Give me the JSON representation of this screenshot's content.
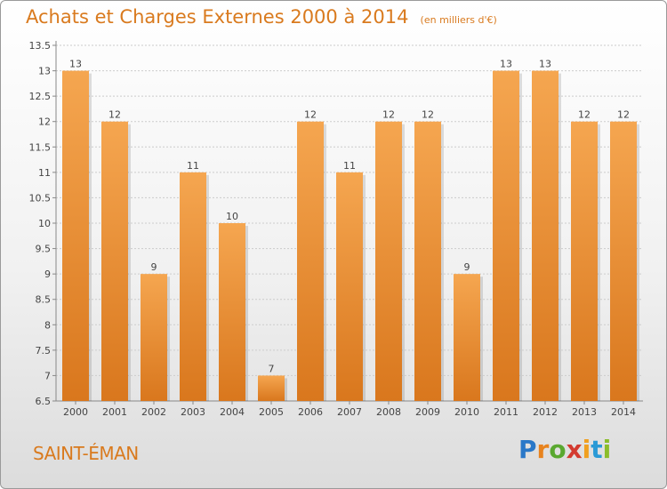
{
  "title": "Achats et Charges Externes 2000 à 2014",
  "subtitle": "(en milliers d'€)",
  "location": "SAINT-ÉMAN",
  "logo": {
    "letters": [
      {
        "ch": "P",
        "color": "#2a78c8"
      },
      {
        "ch": "r",
        "color": "#e8831e"
      },
      {
        "ch": "o",
        "color": "#5aa830"
      },
      {
        "ch": "x",
        "color": "#d33a2f"
      },
      {
        "ch": "i",
        "color": "#f0a020"
      },
      {
        "ch": "t",
        "color": "#2a9ad6"
      },
      {
        "ch": "i",
        "color": "#8bbd2a"
      }
    ]
  },
  "colors": {
    "bar_light": "#f5a650",
    "bar_dark": "#d9771d",
    "grid": "#cccccc",
    "text": "#444444"
  },
  "chart_data": {
    "type": "bar",
    "categories": [
      "2000",
      "2001",
      "2002",
      "2003",
      "2004",
      "2005",
      "2006",
      "2007",
      "2008",
      "2009",
      "2010",
      "2011",
      "2012",
      "2013",
      "2014"
    ],
    "values": [
      13,
      12,
      9,
      11,
      10,
      7,
      12,
      11,
      12,
      12,
      9,
      13,
      13,
      12,
      12
    ],
    "ylim": [
      6.5,
      13.5
    ],
    "yticks": [
      "6.5",
      "7",
      "7.5",
      "8",
      "8.5",
      "9",
      "9.5",
      "10",
      "10.5",
      "11",
      "11.5",
      "12",
      "12.5",
      "13",
      "13.5"
    ],
    "grid": true,
    "xlabel": "",
    "ylabel": ""
  }
}
